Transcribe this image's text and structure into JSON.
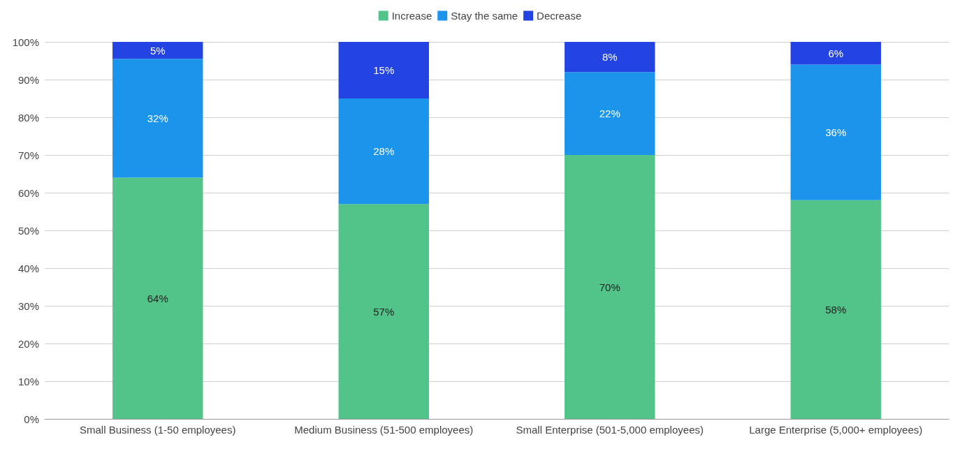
{
  "chart_data": {
    "type": "bar",
    "stacked": true,
    "categories": [
      "Small Business (1-50 employees)",
      "Medium Business (51-500 employees)",
      "Small Enterprise (501-5,000 employees)",
      "Large Enterprise (5,000+ employees)"
    ],
    "series": [
      {
        "name": "Increase",
        "color": "#52c489",
        "values": [
          64,
          57,
          70,
          58
        ],
        "value_labels": [
          "64%",
          "57%",
          "70%",
          "58%"
        ]
      },
      {
        "name": "Stay the same",
        "color": "#1b95eb",
        "values": [
          31.5,
          28,
          22,
          36
        ],
        "value_labels": [
          "32%",
          "28%",
          "22%",
          "36%"
        ]
      },
      {
        "name": "Decrease",
        "color": "#2343e3",
        "values": [
          4.5,
          15,
          8,
          6
        ],
        "value_labels": [
          "5%",
          "15%",
          "8%",
          "6%"
        ]
      }
    ],
    "ylim": [
      0,
      100
    ],
    "yticks": [
      {
        "value": 0,
        "label": "0%"
      },
      {
        "value": 10,
        "label": "10%"
      },
      {
        "value": 20,
        "label": "20%"
      },
      {
        "value": 30,
        "label": "30%"
      },
      {
        "value": 40,
        "label": "40%"
      },
      {
        "value": 50,
        "label": "50%"
      },
      {
        "value": 60,
        "label": "60%"
      },
      {
        "value": 70,
        "label": "70%"
      },
      {
        "value": 80,
        "label": "80%"
      },
      {
        "value": 90,
        "label": "90%"
      },
      {
        "value": 100,
        "label": "100%"
      }
    ],
    "grid": "y",
    "legend": "top"
  }
}
